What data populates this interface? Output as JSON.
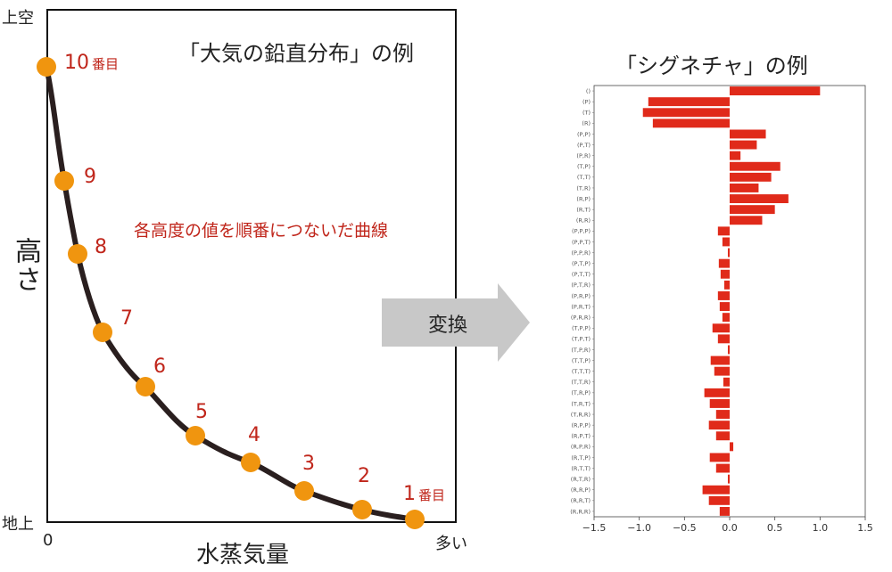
{
  "left_figure": {
    "title": "「大気の鉛直分布」の例",
    "y_axis_label": "高さ",
    "x_axis_label": "水蒸気量",
    "y_top": "上空",
    "y_bottom": "地上",
    "x_zero": "0",
    "x_max": "多い",
    "caption": "各高度の値を順番につないだ曲線",
    "points": [
      {
        "label": "1",
        "suffix": "番目"
      },
      {
        "label": "2",
        "suffix": ""
      },
      {
        "label": "3",
        "suffix": ""
      },
      {
        "label": "4",
        "suffix": ""
      },
      {
        "label": "5",
        "suffix": ""
      },
      {
        "label": "6",
        "suffix": ""
      },
      {
        "label": "7",
        "suffix": ""
      },
      {
        "label": "8",
        "suffix": ""
      },
      {
        "label": "9",
        "suffix": ""
      },
      {
        "label": "10",
        "suffix": "番目"
      }
    ],
    "colors": {
      "curve": "#2a1f1f",
      "point": "#f0950f",
      "label": "#c0261b"
    }
  },
  "arrow": {
    "label": "変換",
    "color": "#c8c8c8"
  },
  "chart_data": {
    "type": "bar",
    "orientation": "horizontal",
    "title": "「シグネチャ」の例",
    "xlim": [
      -1.5,
      1.5
    ],
    "x_ticks": [
      "−1.5",
      "−1.0",
      "−0.5",
      "0.0",
      "0.5",
      "1.0",
      "1.5"
    ],
    "bar_color": "#e02a1a",
    "categories": [
      "()",
      "(P)",
      "(T)",
      "(R)",
      "(P,P)",
      "(P,T)",
      "(P,R)",
      "(T,P)",
      "(T,T)",
      "(T,R)",
      "(R,P)",
      "(R,T)",
      "(R,R)",
      "(P,P,P)",
      "(P,P,T)",
      "(P,P,R)",
      "(P,T,P)",
      "(P,T,T)",
      "(P,T,R)",
      "(P,R,P)",
      "(P,R,T)",
      "(P,R,R)",
      "(T,P,P)",
      "(T,P,T)",
      "(T,P,R)",
      "(T,T,P)",
      "(T,T,T)",
      "(T,T,R)",
      "(T,R,P)",
      "(T,R,T)",
      "(T,R,R)",
      "(R,P,P)",
      "(R,P,T)",
      "(R,P,R)",
      "(R,T,P)",
      "(R,T,T)",
      "(R,T,R)",
      "(R,R,P)",
      "(R,R,T)",
      "(R,R,R)"
    ],
    "values": [
      1.0,
      -0.9,
      -0.96,
      -0.85,
      0.4,
      0.3,
      0.12,
      0.56,
      0.46,
      0.32,
      0.65,
      0.5,
      0.36,
      -0.13,
      -0.08,
      -0.02,
      -0.12,
      -0.1,
      -0.06,
      -0.13,
      -0.11,
      -0.08,
      -0.19,
      -0.13,
      -0.02,
      -0.21,
      -0.17,
      -0.07,
      -0.28,
      -0.22,
      -0.15,
      -0.23,
      -0.15,
      0.04,
      -0.22,
      -0.15,
      -0.02,
      -0.3,
      -0.23,
      -0.11
    ]
  }
}
